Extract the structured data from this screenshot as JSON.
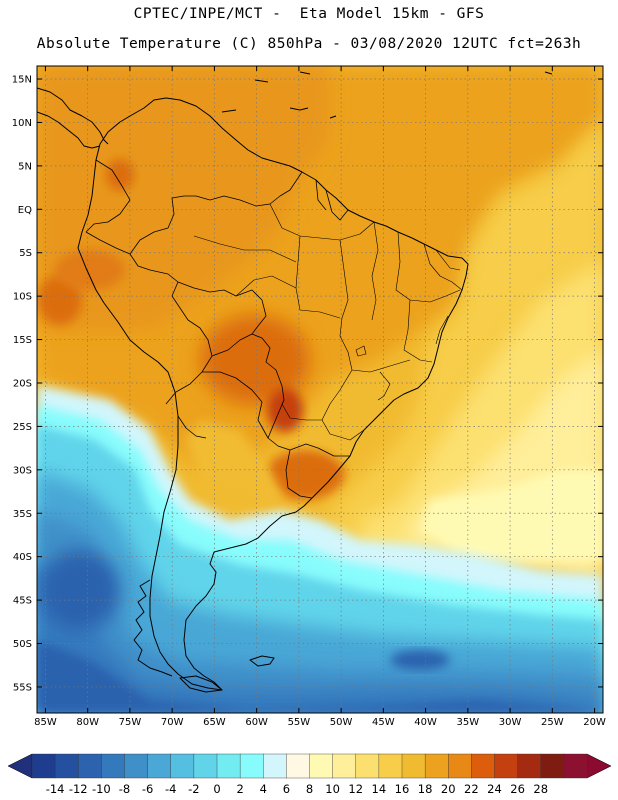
{
  "header": {
    "line1": "CPTEC/INPE/MCT -  Eta Model 15km - GFS",
    "line2": "Absolute Temperature (C) 850hPa - 03/08/2020 12UTC fct=263h"
  },
  "map": {
    "lat_labels": [
      "15N",
      "10N",
      "5N",
      "EQ",
      "5S",
      "10S",
      "15S",
      "20S",
      "25S",
      "30S",
      "35S",
      "40S",
      "45S",
      "50S",
      "55S"
    ],
    "lat_values": [
      15,
      10,
      5,
      0,
      -5,
      -10,
      -15,
      -20,
      -25,
      -30,
      -35,
      -40,
      -45,
      -50,
      -55
    ],
    "lon_labels": [
      "85W",
      "80W",
      "75W",
      "70W",
      "65W",
      "60W",
      "55W",
      "50W",
      "45W",
      "40W",
      "35W",
      "30W",
      "25W",
      "20W"
    ],
    "lon_values": [
      -85,
      -80,
      -75,
      -70,
      -65,
      -60,
      -55,
      -50,
      -45,
      -40,
      -35,
      -30,
      -25,
      -20
    ],
    "lon_range": [
      -86,
      -19
    ],
    "lat_range": [
      -58,
      16.5
    ]
  },
  "colorbar": {
    "labels": [
      "-14",
      "-12",
      "-10",
      "-8",
      "-6",
      "-4",
      "-2",
      "0",
      "2",
      "4",
      "6",
      "8",
      "10",
      "12",
      "14",
      "16",
      "18",
      "20",
      "22",
      "24",
      "26",
      "28"
    ],
    "colors": [
      "#1f3d8f",
      "#25509f",
      "#2c62ae",
      "#3579bd",
      "#3f8fc9",
      "#4aa7d6",
      "#55bfe2",
      "#61d4ea",
      "#72ecf0",
      "#88fcfc",
      "#d2f6fc",
      "#fff9e3",
      "#fffab3",
      "#ffee9a",
      "#fce06f",
      "#f7cd4a",
      "#f1bb31",
      "#eca21e",
      "#e88916",
      "#dc5d0c",
      "#c44010",
      "#a52a12",
      "#7e1c12",
      "#8c1030"
    ],
    "end_colors": {
      "low": "#21307a",
      "high": "#8a0a30"
    }
  }
}
